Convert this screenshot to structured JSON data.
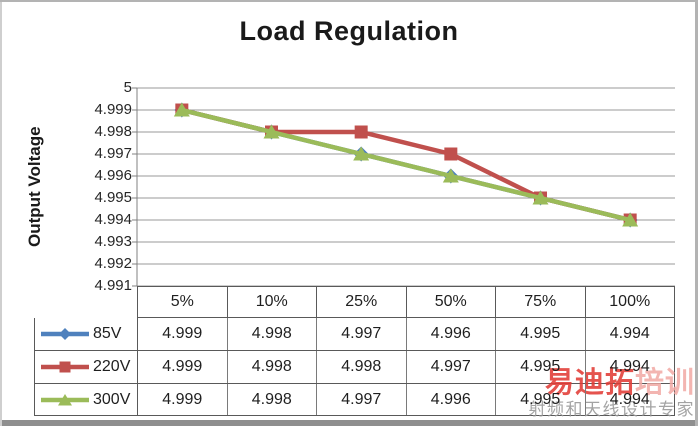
{
  "chart_data": {
    "type": "line",
    "title": "Load Regulation",
    "ylabel": "Output Voltage",
    "xlabel": "",
    "categories": [
      "5%",
      "10%",
      "25%",
      "50%",
      "75%",
      "100%"
    ],
    "series": [
      {
        "name": "85V",
        "color": "#4f81bd",
        "marker": "diamond",
        "values": [
          4.999,
          4.998,
          4.997,
          4.996,
          4.995,
          4.994
        ]
      },
      {
        "name": "220V",
        "color": "#c0504d",
        "marker": "square",
        "values": [
          4.999,
          4.998,
          4.998,
          4.997,
          4.995,
          4.994
        ]
      },
      {
        "name": "300V",
        "color": "#9bbb59",
        "marker": "triangle",
        "values": [
          4.999,
          4.998,
          4.997,
          4.996,
          4.995,
          4.994
        ]
      }
    ],
    "ylim": [
      4.991,
      5.0
    ],
    "ytick_labels": [
      "5",
      "4.999",
      "4.998",
      "4.997",
      "4.996",
      "4.995",
      "4.994",
      "4.993",
      "4.992",
      "4.991"
    ],
    "grid": true,
    "gridline_color": "#999999",
    "axis_color": "#808080",
    "table_border_color": "#595959",
    "legend_position": "left-of-data-table",
    "data_table_shown": true
  },
  "watermark": {
    "brand_main": "易迪拓",
    "brand_suffix": "培训",
    "tagline": "射频和天线设计专家",
    "brand_color": "#e23c36",
    "suffix_color": "#f2a9a4",
    "tagline_color": "#9a9a9a"
  }
}
